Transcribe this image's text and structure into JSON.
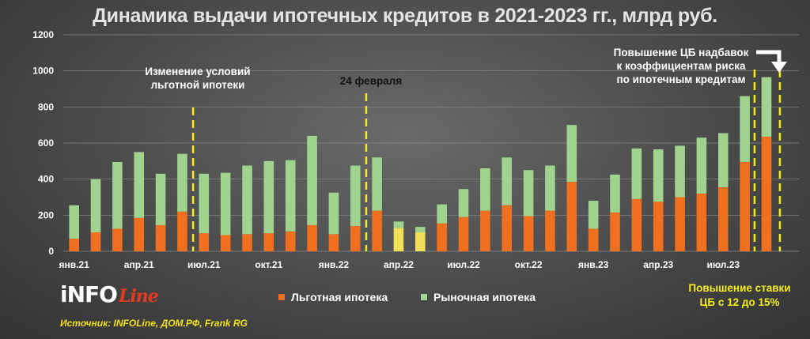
{
  "title": "Динамика выдачи ипотечных кредитов в 2021-2023 гг., млрд руб.",
  "chart_data": {
    "type": "bar",
    "stacked": true,
    "ylim": [
      0,
      1200
    ],
    "yticks": [
      0,
      200,
      400,
      600,
      800,
      1000,
      1200
    ],
    "categories": [
      "янв.21",
      "фев.21",
      "мар.21",
      "апр.21",
      "май.21",
      "июн.21",
      "июл.21",
      "авг.21",
      "сен.21",
      "окт.21",
      "ноя.21",
      "дек.21",
      "янв.22",
      "фев.22",
      "мар.22",
      "апр.22",
      "май.22",
      "июн.22",
      "июл.22",
      "авг.22",
      "сен.22",
      "окт.22",
      "ноя.22",
      "дек.22",
      "янв.23",
      "фев.23",
      "мар.23",
      "апр.23",
      "май.23",
      "июн.23",
      "июл.23",
      "авг.23",
      "сен.23",
      "окт.23"
    ],
    "tick_labels": [
      "янв.21",
      "апр.21",
      "июл.21",
      "окт.21",
      "янв.22",
      "апр.22",
      "июл.22",
      "окт.22",
      "янв.23",
      "апр.23",
      "июл.23"
    ],
    "tick_indices": [
      0,
      3,
      6,
      9,
      12,
      15,
      18,
      21,
      24,
      27,
      30
    ],
    "series": [
      {
        "name": "Льготная ипотека",
        "color": "#f07020",
        "values": [
          70,
          105,
          125,
          185,
          145,
          220,
          100,
          90,
          95,
          100,
          110,
          145,
          95,
          140,
          225,
          130,
          105,
          155,
          190,
          225,
          255,
          195,
          225,
          385,
          125,
          215,
          290,
          275,
          300,
          320,
          355,
          495,
          635,
          0
        ]
      },
      {
        "name": "Рыночная ипотека",
        "color": "#9fd38e",
        "values": [
          185,
          295,
          370,
          365,
          285,
          320,
          330,
          345,
          380,
          400,
          395,
          495,
          230,
          335,
          295,
          35,
          30,
          105,
          155,
          235,
          265,
          255,
          250,
          315,
          155,
          210,
          280,
          290,
          285,
          310,
          300,
          365,
          330,
          0
        ]
      }
    ],
    "highlight": {
      "indices": [
        15,
        16
      ],
      "series0_color": "#f2e05a"
    },
    "highlight_markers": [
      {
        "after_index": 5,
        "label_lines": [
          "Изменение условий",
          "льготной ипотеки"
        ]
      },
      {
        "after_index": 13,
        "label_lines": [
          "24 февраля"
        ]
      },
      {
        "around_index": 32
      }
    ]
  },
  "annotations": {
    "cb_markup": [
      "Повышение ЦБ надбавок",
      "к коэффициентам риска",
      "по ипотечным кредитам"
    ],
    "rate_hike": [
      "Повышение ставки",
      "ЦБ с 12 до 15%"
    ]
  },
  "legend": [
    "Льготная ипотека",
    "Рыночная ипотека"
  ],
  "logo": {
    "main": "iNFO",
    "script": "Line"
  },
  "source": "Источник: INFOLine, ДОМ.РФ, Frank RG",
  "colors": {
    "grid": "#8a8a8a",
    "axis_text": "#ffffff",
    "dash": "#f5ec1c"
  }
}
